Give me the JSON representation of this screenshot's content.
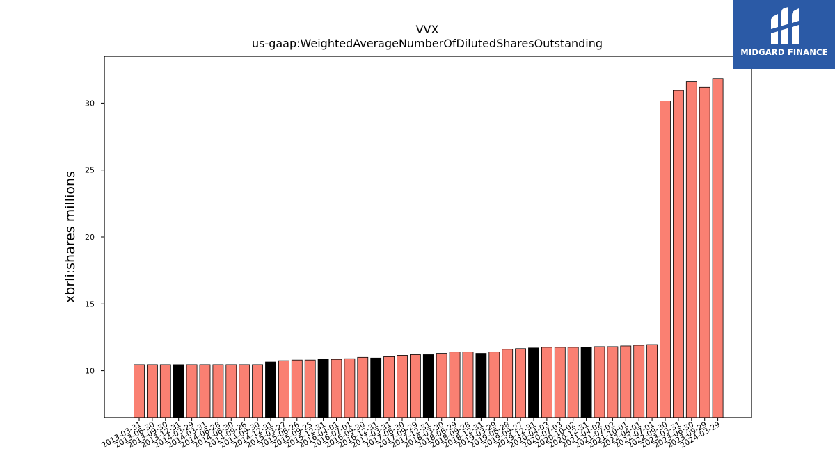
{
  "chart_data": {
    "type": "bar",
    "title": "VVX",
    "subtitle": "us-gaap:WeightedAverageNumberOfDilutedSharesOutstanding",
    "xlabel": "",
    "ylabel": "xbrli:shares millions",
    "ylim": [
      6.5,
      33.5
    ],
    "yticks": [
      10,
      15,
      20,
      25,
      30
    ],
    "grid": false,
    "colors": {
      "quarter": "#fa8072",
      "year_end": "#000000"
    },
    "categories": [
      "2013-03-31",
      "2013-06-30",
      "2013-09-30",
      "2013-12-31",
      "2014-03-29",
      "2014-03-31",
      "2014-06-28",
      "2014-06-30",
      "2014-09-26",
      "2014-09-30",
      "2014-12-31",
      "2015-03-27",
      "2015-06-26",
      "2015-09-25",
      "2015-12-31",
      "2016-04-01",
      "2016-07-01",
      "2016-09-30",
      "2016-12-31",
      "2017-03-31",
      "2017-06-30",
      "2017-09-29",
      "2017-12-31",
      "2018-03-30",
      "2018-06-29",
      "2018-09-28",
      "2018-12-31",
      "2019-03-29",
      "2019-06-28",
      "2019-09-27",
      "2019-12-31",
      "2020-04-03",
      "2020-07-03",
      "2020-10-02",
      "2020-12-31",
      "2021-04-02",
      "2021-07-02",
      "2021-10-01",
      "2022-04-01",
      "2022-07-01",
      "2022-09-30",
      "2023-03-31",
      "2023-06-30",
      "2023-09-29",
      "2024-03-29"
    ],
    "values": [
      10.45,
      10.45,
      10.45,
      10.45,
      10.45,
      10.45,
      10.45,
      10.45,
      10.45,
      10.45,
      10.65,
      10.75,
      10.8,
      10.8,
      10.85,
      10.85,
      10.9,
      11.0,
      10.95,
      11.05,
      11.15,
      11.2,
      11.2,
      11.3,
      11.4,
      11.4,
      11.3,
      11.4,
      11.6,
      11.65,
      11.7,
      11.75,
      11.75,
      11.75,
      11.75,
      11.8,
      11.8,
      11.85,
      11.9,
      11.95,
      30.15,
      30.95,
      31.6,
      31.2,
      31.85
    ],
    "year_end": [
      false,
      false,
      false,
      true,
      false,
      false,
      false,
      false,
      false,
      false,
      true,
      false,
      false,
      false,
      true,
      false,
      false,
      false,
      true,
      false,
      false,
      false,
      true,
      false,
      false,
      false,
      true,
      false,
      false,
      false,
      true,
      false,
      false,
      false,
      true,
      false,
      false,
      false,
      false,
      false,
      false,
      false,
      false,
      false,
      false
    ]
  },
  "logo": {
    "text": "MIDGARD FINANCE",
    "icon": "midgard-logo-icon",
    "color": "#2b5aa6"
  }
}
